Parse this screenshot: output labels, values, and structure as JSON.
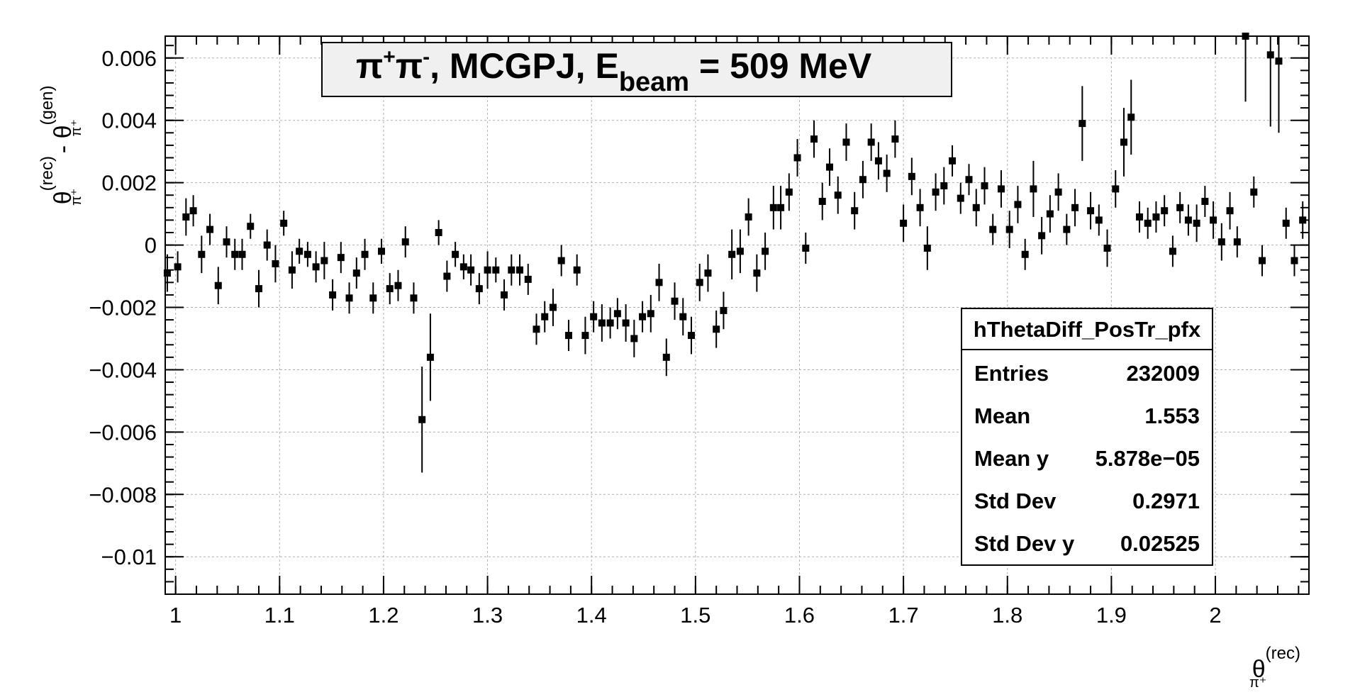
{
  "chart_data": {
    "type": "scatter",
    "title": {
      "prefix": "π",
      "sup1": "+",
      "mid": "π",
      "sup2": "-",
      "main": ", MCGPJ, E",
      "sub": "beam",
      "suffix": " = 509 MeV"
    },
    "xlabel": {
      "base": "θ",
      "sup": "(rec)",
      "sub": "π⁺"
    },
    "ylabel": {
      "base1": "θ",
      "sup1": "(rec)",
      "sub1": "π⁺",
      "minus": " - ",
      "base2": "θ",
      "sup2": "(gen)",
      "sub2": "π⁺"
    },
    "xlim": [
      0.99,
      2.09
    ],
    "ylim": [
      -0.0112,
      0.0067
    ],
    "x_ticks": [
      1,
      1.1,
      1.2,
      1.3,
      1.4,
      1.5,
      1.6,
      1.7,
      1.8,
      1.9,
      2
    ],
    "x_tick_labels": [
      "1",
      "1.1",
      "1.2",
      "1.3",
      "1.4",
      "1.5",
      "1.6",
      "1.7",
      "1.8",
      "1.9",
      "2"
    ],
    "y_ticks": [
      -0.01,
      -0.008,
      -0.006,
      -0.004,
      -0.002,
      0,
      0.002,
      0.004,
      0.006
    ],
    "y_tick_labels": [
      "−0.01",
      "−0.008",
      "−0.006",
      "−0.004",
      "−0.002",
      "0",
      "0.002",
      "0.004",
      "0.006"
    ],
    "grid": true,
    "series": [
      {
        "points": [
          [
            0.992,
            -0.0009,
            0.0006
          ],
          [
            1.002,
            -0.0007,
            0.0005
          ],
          [
            1.01,
            0.0009,
            0.0006
          ],
          [
            1.017,
            0.0011,
            0.0005
          ],
          [
            1.025,
            -0.0003,
            0.0006
          ],
          [
            1.033,
            0.0005,
            0.0005
          ],
          [
            1.041,
            -0.0013,
            0.0006
          ],
          [
            1.049,
            0.0001,
            0.0005
          ],
          [
            1.057,
            -0.0003,
            0.0005
          ],
          [
            1.064,
            -0.0003,
            0.0005
          ],
          [
            1.072,
            0.0006,
            0.0004
          ],
          [
            1.08,
            -0.0014,
            0.0006
          ],
          [
            1.088,
            0.0,
            0.0005
          ],
          [
            1.096,
            -0.0006,
            0.0006
          ],
          [
            1.104,
            0.0007,
            0.0004
          ],
          [
            1.112,
            -0.0008,
            0.0006
          ],
          [
            1.119,
            -0.0002,
            0.0004
          ],
          [
            1.127,
            -0.0003,
            0.0004
          ],
          [
            1.135,
            -0.0007,
            0.0005
          ],
          [
            1.143,
            -0.0005,
            0.0006
          ],
          [
            1.151,
            -0.0016,
            0.0005
          ],
          [
            1.159,
            -0.0004,
            0.0005
          ],
          [
            1.167,
            -0.0017,
            0.0005
          ],
          [
            1.174,
            -0.0009,
            0.0005
          ],
          [
            1.182,
            -0.0003,
            0.0005
          ],
          [
            1.19,
            -0.0017,
            0.0005
          ],
          [
            1.198,
            -0.0002,
            0.0004
          ],
          [
            1.206,
            -0.0014,
            0.0005
          ],
          [
            1.214,
            -0.0013,
            0.0005
          ],
          [
            1.221,
            0.0001,
            0.0005
          ],
          [
            1.229,
            -0.0017,
            0.0005
          ],
          [
            1.237,
            -0.0056,
            0.0017
          ],
          [
            1.245,
            -0.0036,
            0.0014
          ],
          [
            1.253,
            0.0004,
            0.0004
          ],
          [
            1.261,
            -0.001,
            0.0005
          ],
          [
            1.269,
            -0.0003,
            0.0004
          ],
          [
            1.277,
            -0.0007,
            0.0004
          ],
          [
            1.284,
            -0.0008,
            0.0005
          ],
          [
            1.292,
            -0.0014,
            0.0005
          ],
          [
            1.3,
            -0.0008,
            0.0006
          ],
          [
            1.308,
            -0.0008,
            0.0004
          ],
          [
            1.316,
            -0.0016,
            0.0005
          ],
          [
            1.323,
            -0.0008,
            0.0005
          ],
          [
            1.331,
            -0.0008,
            0.0005
          ],
          [
            1.339,
            -0.0011,
            0.0005
          ],
          [
            1.347,
            -0.0027,
            0.0005
          ],
          [
            1.355,
            -0.0023,
            0.0005
          ],
          [
            1.363,
            -0.002,
            0.0006
          ],
          [
            1.371,
            -0.0005,
            0.0005
          ],
          [
            1.378,
            -0.0029,
            0.0005
          ],
          [
            1.386,
            -0.0008,
            0.0005
          ],
          [
            1.394,
            -0.0029,
            0.0006
          ],
          [
            1.402,
            -0.0023,
            0.0005
          ],
          [
            1.41,
            -0.0025,
            0.0006
          ],
          [
            1.418,
            -0.0025,
            0.0005
          ],
          [
            1.425,
            -0.0022,
            0.0005
          ],
          [
            1.433,
            -0.0025,
            0.0006
          ],
          [
            1.441,
            -0.003,
            0.0006
          ],
          [
            1.449,
            -0.0023,
            0.0005
          ],
          [
            1.457,
            -0.0022,
            0.0006
          ],
          [
            1.465,
            -0.0012,
            0.0006
          ],
          [
            1.472,
            -0.0036,
            0.0006
          ],
          [
            1.48,
            -0.0018,
            0.0006
          ],
          [
            1.488,
            -0.0023,
            0.0006
          ],
          [
            1.496,
            -0.0029,
            0.0006
          ],
          [
            1.504,
            -0.0012,
            0.0006
          ],
          [
            1.512,
            -0.0009,
            0.0006
          ],
          [
            1.52,
            -0.0027,
            0.0006
          ],
          [
            1.527,
            -0.0021,
            0.0006
          ],
          [
            1.535,
            -0.0003,
            0.0008
          ],
          [
            1.543,
            -0.0002,
            0.0007
          ],
          [
            1.551,
            0.0009,
            0.0006
          ],
          [
            1.559,
            -0.0009,
            0.0006
          ],
          [
            1.567,
            -0.0002,
            0.0006
          ],
          [
            1.575,
            0.0012,
            0.0007
          ],
          [
            1.582,
            0.0012,
            0.0007
          ],
          [
            1.59,
            0.0017,
            0.0006
          ],
          [
            1.598,
            0.0028,
            0.0006
          ],
          [
            1.606,
            -0.0001,
            0.0005
          ],
          [
            1.614,
            0.0034,
            0.0006
          ],
          [
            1.622,
            0.0014,
            0.0006
          ],
          [
            1.629,
            0.0025,
            0.0006
          ],
          [
            1.637,
            0.0016,
            0.0006
          ],
          [
            1.645,
            0.0033,
            0.0006
          ],
          [
            1.653,
            0.0011,
            0.0006
          ],
          [
            1.661,
            0.0021,
            0.0006
          ],
          [
            1.669,
            0.0033,
            0.0006
          ],
          [
            1.676,
            0.0027,
            0.0006
          ],
          [
            1.684,
            0.0023,
            0.0006
          ],
          [
            1.692,
            0.0034,
            0.0006
          ],
          [
            1.7,
            0.0007,
            0.0006
          ],
          [
            1.708,
            0.0022,
            0.0006
          ],
          [
            1.716,
            0.0012,
            0.0006
          ],
          [
            1.723,
            -0.0001,
            0.0007
          ],
          [
            1.731,
            0.0017,
            0.0006
          ],
          [
            1.739,
            0.0019,
            0.0006
          ],
          [
            1.747,
            0.0027,
            0.0005
          ],
          [
            1.755,
            0.0015,
            0.0005
          ],
          [
            1.763,
            0.0021,
            0.0005
          ],
          [
            1.77,
            0.0012,
            0.0006
          ],
          [
            1.778,
            0.0019,
            0.0006
          ],
          [
            1.786,
            0.0005,
            0.0005
          ],
          [
            1.794,
            0.0018,
            0.0006
          ],
          [
            1.802,
            0.0005,
            0.0006
          ],
          [
            1.81,
            0.0013,
            0.0006
          ],
          [
            1.817,
            -0.0003,
            0.0005
          ],
          [
            1.825,
            0.0018,
            0.0009
          ],
          [
            1.833,
            0.0003,
            0.0006
          ],
          [
            1.841,
            0.001,
            0.0006
          ],
          [
            1.849,
            0.0017,
            0.0006
          ],
          [
            1.857,
            0.0005,
            0.0005
          ],
          [
            1.865,
            0.0012,
            0.0006
          ],
          [
            1.872,
            0.0039,
            0.0012
          ],
          [
            1.88,
            0.0011,
            0.0006
          ],
          [
            1.888,
            0.0008,
            0.0005
          ],
          [
            1.896,
            -0.0001,
            0.0006
          ],
          [
            1.904,
            0.0018,
            0.0006
          ],
          [
            1.912,
            0.0033,
            0.0011
          ],
          [
            1.919,
            0.0041,
            0.0012
          ],
          [
            1.927,
            0.0009,
            0.0005
          ],
          [
            1.935,
            0.0007,
            0.0005
          ],
          [
            1.943,
            0.0009,
            0.0005
          ],
          [
            1.951,
            0.0011,
            0.0005
          ],
          [
            1.959,
            -0.0002,
            0.0005
          ],
          [
            1.966,
            0.0012,
            0.0005
          ],
          [
            1.974,
            0.0008,
            0.0005
          ],
          [
            1.982,
            0.0007,
            0.0006
          ],
          [
            1.99,
            0.0014,
            0.0005
          ],
          [
            1.998,
            0.0008,
            0.0006
          ],
          [
            2.006,
            0.0001,
            0.0006
          ],
          [
            2.014,
            0.0011,
            0.0006
          ],
          [
            2.021,
            0.0001,
            0.0005
          ],
          [
            2.029,
            0.0067,
            0.0021
          ],
          [
            2.037,
            0.0017,
            0.0005
          ],
          [
            2.045,
            -0.0005,
            0.0005
          ],
          [
            2.053,
            0.0061,
            0.0023
          ],
          [
            2.061,
            0.0059,
            0.0023
          ],
          [
            2.068,
            0.0007,
            0.0005
          ],
          [
            2.076,
            -0.0005,
            0.0005
          ],
          [
            2.084,
            0.0008,
            0.0006
          ]
        ]
      }
    ],
    "stats_box": {
      "name": "hThetaDiff_PosTr_pfx",
      "rows": [
        {
          "label": "Entries",
          "value": "232009"
        },
        {
          "label": "Mean",
          "value": "1.553"
        },
        {
          "label": "Mean y",
          "value": "5.878e−05"
        },
        {
          "label": "Std Dev",
          "value": "0.2971"
        },
        {
          "label": "Std Dev y",
          "value": "0.02525"
        }
      ]
    }
  }
}
